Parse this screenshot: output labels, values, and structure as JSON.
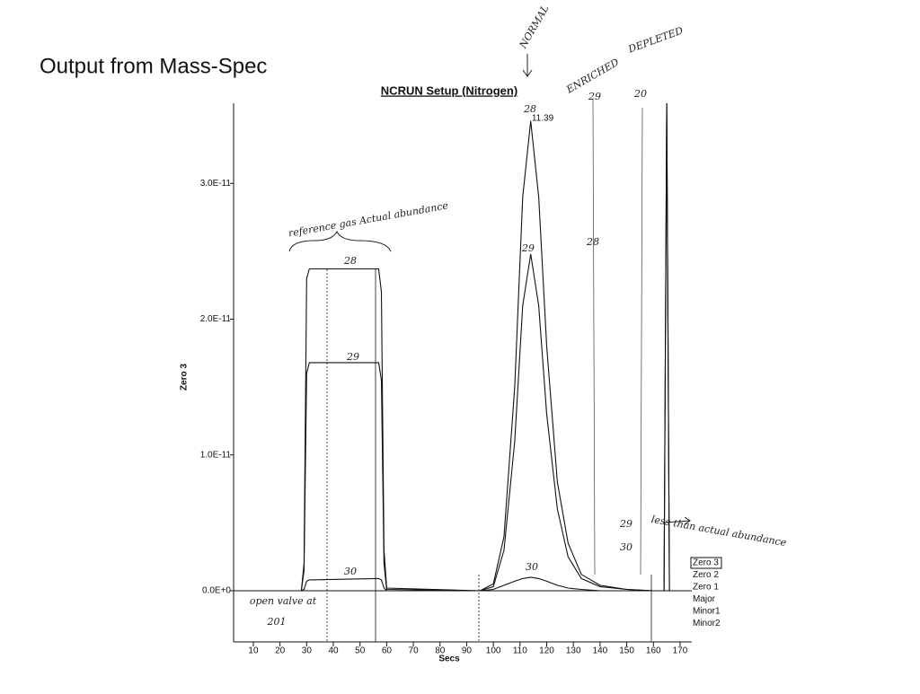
{
  "heading": "Output from Mass-Spec",
  "chart_data": {
    "type": "line",
    "title": "NCRUN Setup (Nitrogen)",
    "x_label": "Secs",
    "y_label": "Zero 3",
    "xlim": [
      2.6,
      174.4
    ],
    "ylim": [
      -3.77e-12,
      3.59e-11
    ],
    "xticks": [
      10,
      20,
      30,
      40,
      50,
      60,
      70,
      80,
      90,
      100,
      110,
      120,
      130,
      140,
      150,
      160,
      170
    ],
    "yticks": [
      {
        "value": 0,
        "label": "0.0E+0"
      },
      {
        "value": 1e-11,
        "label": "1.0E-11"
      },
      {
        "value": 2e-11,
        "label": "2.0E-11"
      },
      {
        "value": 3e-11,
        "label": "3.0E-11"
      }
    ],
    "x": [
      3,
      28,
      29,
      30,
      31,
      56,
      57,
      58,
      59,
      60,
      95,
      100,
      104,
      108,
      111,
      114,
      117,
      120,
      124,
      128,
      133,
      140,
      150,
      160,
      163,
      164,
      165,
      166,
      167,
      172
    ],
    "series": [
      {
        "name": "Major",
        "color": "#111111",
        "values": [
          0,
          0,
          2e-12,
          2.3e-11,
          2.37e-11,
          2.37e-11,
          2.37e-11,
          2.2e-11,
          3e-12,
          2e-13,
          0,
          5e-13,
          4e-12,
          1.5e-11,
          2.9e-11,
          3.46e-11,
          2.9e-11,
          1.8e-11,
          8e-12,
          3.5e-12,
          1.2e-12,
          4e-13,
          1e-13,
          0,
          0,
          0,
          3.6e-11,
          0,
          0,
          0
        ]
      },
      {
        "name": "Minor1",
        "color": "#111111",
        "values": [
          0,
          0,
          1.5e-12,
          1.6e-11,
          1.68e-11,
          1.68e-11,
          1.68e-11,
          1.55e-11,
          2e-12,
          1e-13,
          0,
          3e-13,
          3e-12,
          1.1e-11,
          2.1e-11,
          2.48e-11,
          2.1e-11,
          1.3e-11,
          6e-12,
          2.5e-12,
          9e-13,
          3e-13,
          1e-13,
          0,
          0,
          0,
          3.6e-11,
          0,
          0,
          0
        ]
      },
      {
        "name": "Minor2",
        "color": "#111111",
        "values": [
          0,
          0,
          1e-13,
          7e-13,
          8e-13,
          9e-13,
          9e-13,
          8e-13,
          2e-13,
          0,
          0,
          1e-13,
          4e-13,
          7e-13,
          9e-13,
          1e-12,
          9e-13,
          7e-13,
          4e-13,
          2e-13,
          1e-13,
          0,
          0,
          0,
          0,
          0,
          0,
          0,
          0,
          0
        ]
      }
    ],
    "legend_other": [
      "Zero 3",
      "Zero 2",
      "Zero 1"
    ],
    "annotations": [
      "NORMAL",
      "ENRICHED",
      "DEPLETED",
      "11.39",
      "reference gas Actual abundance",
      "less than actual abundance",
      "open valve at",
      "201",
      "28",
      "29",
      "30",
      "28",
      "29",
      "30",
      "29",
      "20",
      "28",
      "29",
      "30"
    ]
  }
}
